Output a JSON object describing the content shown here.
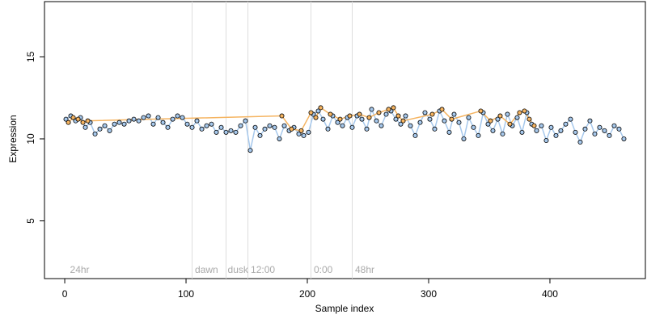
{
  "chart_data": {
    "type": "scatter",
    "xlabel": "Sample index",
    "ylabel": "Expression",
    "xlim": [
      -16.7,
      478.7
    ],
    "ylim": [
      1.48,
      18.37
    ],
    "xticks": [
      0,
      100,
      200,
      300,
      400
    ],
    "yticks": [
      5,
      10,
      15
    ],
    "vlines": [
      105,
      133,
      151,
      203,
      237
    ],
    "vline_color": "#dddddd",
    "annotations": [
      {
        "text": "24hr",
        "x": 3
      },
      {
        "text": "dawn",
        "x": 106
      },
      {
        "text": "dusk",
        "x": 133
      },
      {
        "text": "12:00",
        "x": 152
      },
      {
        "text": "0:00",
        "x": 204
      },
      {
        "text": "48hr",
        "x": 238
      }
    ],
    "series": [
      {
        "color": "#a6c8ec",
        "x": [
          1,
          5,
          9,
          13,
          17,
          21,
          25,
          29,
          33,
          37,
          41,
          45,
          49,
          53,
          57,
          61,
          65,
          69,
          73,
          77,
          81,
          85,
          89,
          93,
          97,
          101,
          105,
          109,
          113,
          117,
          121,
          125,
          129,
          133,
          137,
          141,
          145,
          149,
          153,
          157,
          161,
          165,
          169,
          173,
          177,
          181,
          185,
          189,
          193,
          197,
          201,
          205,
          209,
          213,
          217,
          221,
          225,
          229,
          233,
          237,
          241,
          245,
          249,
          253,
          257,
          261,
          265,
          269,
          273,
          277,
          281,
          285,
          289,
          293,
          297,
          301,
          305,
          309,
          313,
          317,
          321,
          325,
          329,
          333,
          337,
          341,
          345,
          349,
          353,
          357,
          361,
          365,
          369,
          373,
          377,
          381,
          385,
          389,
          393,
          397,
          401,
          405,
          409,
          413,
          417,
          421,
          425,
          429,
          433,
          437,
          441,
          445,
          449,
          453,
          457,
          461
        ],
        "values": [
          11.2,
          11.4,
          11.1,
          11.3,
          10.7,
          11.0,
          10.3,
          10.6,
          10.8,
          10.5,
          10.9,
          11.0,
          10.9,
          11.1,
          11.2,
          11.1,
          11.3,
          11.4,
          10.9,
          11.3,
          11.0,
          10.7,
          11.2,
          11.4,
          11.3,
          10.9,
          10.7,
          11.1,
          10.6,
          10.8,
          10.9,
          10.4,
          10.7,
          10.4,
          10.5,
          10.4,
          10.8,
          11.1,
          9.3,
          10.7,
          10.2,
          10.6,
          10.8,
          10.7,
          10.0,
          10.8,
          10.5,
          10.7,
          10.3,
          10.2,
          10.4,
          11.5,
          11.7,
          11.2,
          10.6,
          11.4,
          11.0,
          10.8,
          11.3,
          10.7,
          11.4,
          11.2,
          10.6,
          11.8,
          11.1,
          10.8,
          11.5,
          11.7,
          11.2,
          10.9,
          11.4,
          10.8,
          10.2,
          11.0,
          11.6,
          11.2,
          10.6,
          11.7,
          11.1,
          10.4,
          11.5,
          11.0,
          10.0,
          11.3,
          10.7,
          10.2,
          11.6,
          10.9,
          10.5,
          11.2,
          10.3,
          11.5,
          10.8,
          11.3,
          10.4,
          11.6,
          10.9,
          10.5,
          10.8,
          9.9,
          10.7,
          10.2,
          10.5,
          10.9,
          11.2,
          10.4,
          9.8,
          10.6,
          11.1,
          10.3,
          10.7,
          10.5,
          10.2,
          10.8,
          10.6,
          10.0
        ]
      },
      {
        "color": "#f5b461",
        "x": [
          3,
          7,
          11,
          15,
          19,
          179,
          187,
          195,
          203,
          207,
          211,
          219,
          227,
          235,
          243,
          251,
          259,
          267,
          271,
          275,
          279,
          303,
          311,
          319,
          343,
          351,
          359,
          367,
          375,
          379,
          383,
          387
        ],
        "values": [
          11.0,
          11.3,
          11.2,
          11.0,
          11.1,
          11.4,
          10.6,
          10.5,
          11.6,
          11.3,
          11.9,
          11.5,
          11.2,
          11.4,
          11.5,
          11.3,
          11.6,
          11.8,
          11.9,
          11.4,
          11.1,
          11.5,
          11.8,
          11.2,
          11.7,
          11.1,
          11.4,
          10.9,
          11.6,
          11.7,
          11.2,
          10.8
        ]
      }
    ]
  }
}
